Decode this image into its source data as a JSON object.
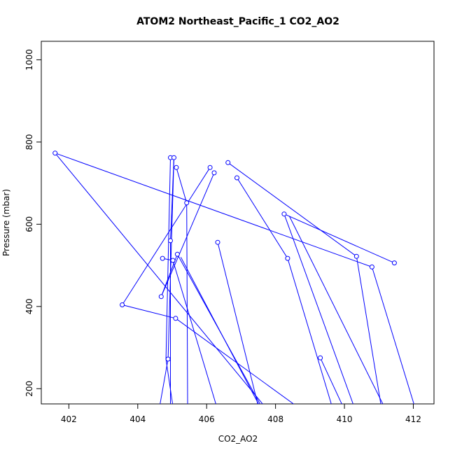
{
  "chart_data": {
    "type": "line",
    "title": "ATOM2 Northeast_Pacific_1 CO2_AO2",
    "xlabel": "CO2_AO2",
    "ylabel": "Pressure (mbar)",
    "xlim": [
      401.2,
      412.6
    ],
    "ylim": [
      1045,
      163
    ],
    "y_reversed": true,
    "grid": false,
    "legend": "none",
    "x_ticks": [
      "402",
      "404",
      "406",
      "408",
      "410",
      "412"
    ],
    "y_ticks": [
      "200",
      "400",
      "600",
      "800",
      "1000"
    ],
    "x_tick_values": [
      402,
      404,
      406,
      408,
      410,
      412
    ],
    "y_tick_values": [
      200,
      400,
      600,
      800,
      1000
    ],
    "color": "#0000ff",
    "series": [
      {
        "x": [
          404.6,
          404.88,
          405.05
        ],
        "y": [
          140,
          272,
          762
        ]
      },
      {
        "x": [
          405.05,
          404.82,
          404.95
        ],
        "y": [
          140,
          272,
          762
        ]
      },
      {
        "x": [
          405.45,
          405.42,
          405.12
        ],
        "y": [
          140,
          652,
          738
        ]
      },
      {
        "x": [
          406.35,
          405.02,
          404.72
        ],
        "y": [
          140,
          512,
          517
        ]
      },
      {
        "x": [
          407.55,
          406.32
        ],
        "y": [
          140,
          556
        ]
      },
      {
        "x": [
          407.65,
          405.25
        ],
        "y": [
          140,
          520
        ]
      },
      {
        "x": [
          407.7,
          405.15,
          404.68,
          406.22
        ],
        "y": [
          140,
          527,
          424,
          725
        ]
      },
      {
        "x": [
          407.85,
          401.6,
          410.8
        ],
        "y": [
          140,
          773,
          496
        ]
      },
      {
        "x": [
          408.9,
          405.1,
          403.55,
          406.1
        ],
        "y": [
          140,
          371,
          404,
          738
        ]
      },
      {
        "x": [
          409.7,
          408.35,
          406.88
        ],
        "y": [
          140,
          517,
          713
        ]
      },
      {
        "x": [
          410.05,
          409.3
        ],
        "y": [
          140,
          275
        ]
      },
      {
        "x": [
          410.35,
          408.25,
          411.45
        ],
        "y": [
          140,
          625,
          506
        ]
      },
      {
        "x": [
          411.1,
          410.35,
          406.62
        ],
        "y": [
          140,
          522,
          750
        ]
      },
      {
        "x": [
          411.25,
          408.4
        ],
        "y": [
          140,
          620
        ]
      },
      {
        "x": [
          412.1,
          410.8
        ],
        "y": [
          140,
          496
        ]
      },
      {
        "x": [
          404.95,
          404.95,
          405.05
        ],
        "y": [
          140,
          560,
          762
        ]
      }
    ],
    "points": [
      {
        "x": 404.88,
        "y": 272
      },
      {
        "x": 405.1,
        "y": 371
      },
      {
        "x": 403.55,
        "y": 404
      },
      {
        "x": 404.68,
        "y": 424
      },
      {
        "x": 410.8,
        "y": 496
      },
      {
        "x": 411.45,
        "y": 506
      },
      {
        "x": 405.02,
        "y": 512
      },
      {
        "x": 408.35,
        "y": 517
      },
      {
        "x": 404.72,
        "y": 517
      },
      {
        "x": 410.35,
        "y": 522
      },
      {
        "x": 405.15,
        "y": 527
      },
      {
        "x": 406.32,
        "y": 556
      },
      {
        "x": 404.95,
        "y": 560
      },
      {
        "x": 408.25,
        "y": 625
      },
      {
        "x": 405.42,
        "y": 652
      },
      {
        "x": 406.88,
        "y": 713
      },
      {
        "x": 406.22,
        "y": 725
      },
      {
        "x": 405.12,
        "y": 738
      },
      {
        "x": 406.1,
        "y": 738
      },
      {
        "x": 406.62,
        "y": 750
      },
      {
        "x": 404.95,
        "y": 762
      },
      {
        "x": 405.05,
        "y": 762
      },
      {
        "x": 401.6,
        "y": 773
      },
      {
        "x": 409.3,
        "y": 275
      }
    ]
  }
}
